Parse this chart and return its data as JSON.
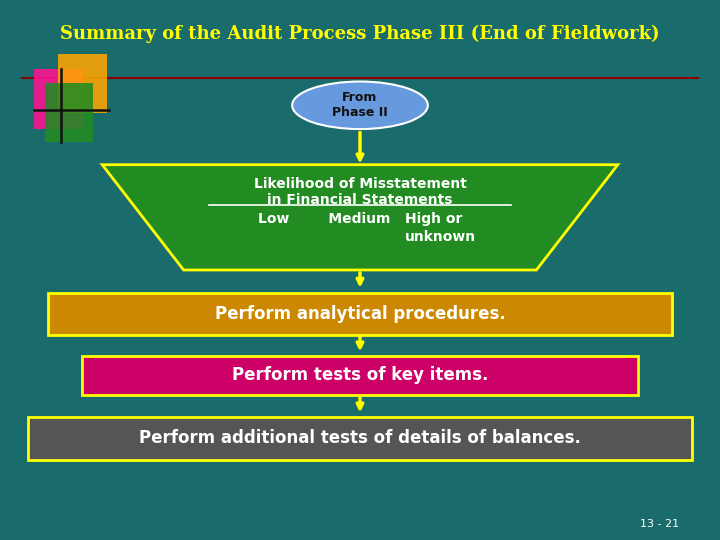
{
  "title": "Summary of the Audit Process Phase III (End of Fieldwork)",
  "title_color": "#FFFF00",
  "bg_color": "#1a6b6b",
  "from_phase_text": "From\nPhase II",
  "trapezoid_text_line1": "Likelihood of Misstatement",
  "trapezoid_text_line2": "in Financial Statements",
  "trapezoid_text_line3": "Low        Medium   High or",
  "trapezoid_text_line4": "unknown",
  "trapezoid_fill": "#228B22",
  "trapezoid_edge": "#FFFF00",
  "box1_text": "Perform analytical procedures.",
  "box1_fill": "#CC8800",
  "box1_edge": "#FFFF00",
  "box2_text": "Perform tests of key items.",
  "box2_fill": "#CC0066",
  "box2_edge": "#FFFF00",
  "box3_text": "Perform additional tests of details of balances.",
  "box3_fill": "#555555",
  "box3_edge": "#FFFF00",
  "ellipse_fill": "#6699DD",
  "ellipse_edge": "#FFFFFF",
  "arrow_color": "#FFFF00",
  "text_color": "#FFFFFF",
  "slide_num": "13 - 21",
  "line_color": "#8B0000"
}
